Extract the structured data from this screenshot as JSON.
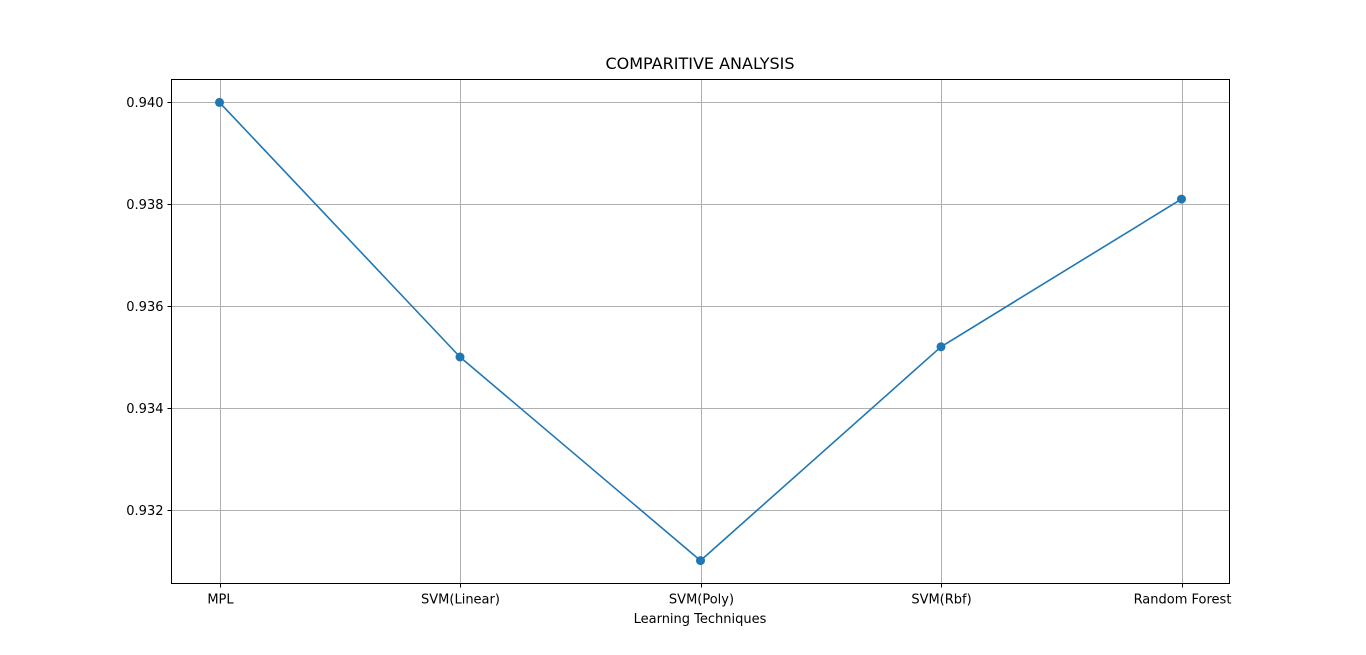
{
  "chart_data": {
    "type": "line",
    "title": "COMPARITIVE ANALYSIS",
    "xlabel": "Learning Techniques",
    "ylabel": "",
    "categories": [
      "MPL",
      "SVM(Linear)",
      "SVM(Poly)",
      "SVM(Rbf)",
      "Random Forest"
    ],
    "series": [
      {
        "values": [
          0.94,
          0.935,
          0.931,
          0.9352,
          0.9381
        ]
      }
    ],
    "ylim": [
      0.93055,
      0.94045
    ],
    "yticks": [
      "0.932",
      "0.934",
      "0.936",
      "0.938",
      "0.940"
    ],
    "ytick_values": [
      0.932,
      0.934,
      0.936,
      0.938,
      0.94
    ],
    "grid": true,
    "marker": "circle",
    "line_color": "#1f77b4",
    "grid_color": "#b0b0b0"
  }
}
